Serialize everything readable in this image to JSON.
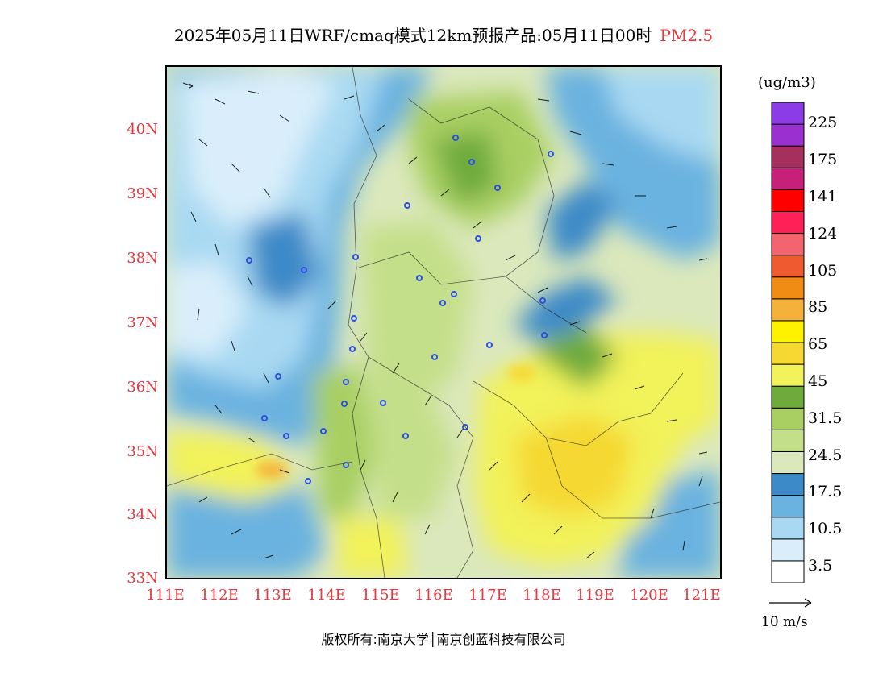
{
  "title": {
    "main": "2025年05月11日WRF/cmaq模式12km预报产品:05月11日00时",
    "variable": "PM2.5"
  },
  "colors": {
    "accent_red": "#e8383d",
    "scale": [
      "#ffffff",
      "#d9eefa",
      "#a9d9f2",
      "#6ab2e0",
      "#3d8ac8",
      "#dbe8bc",
      "#c4df8a",
      "#a9cf62",
      "#6eaa3c",
      "#f2f25a",
      "#f5d832",
      "#fff200",
      "#f5b23a",
      "#f08c14",
      "#ef5a30",
      "#f2646e",
      "#ff2058",
      "#ff0000",
      "#c8207a",
      "#a5305e",
      "#9a30d0",
      "#8c3ce6"
    ]
  },
  "map": {
    "lat_labels": [
      "40N",
      "39N",
      "38N",
      "37N",
      "36N",
      "35N",
      "34N",
      "33N"
    ],
    "lon_labels": [
      "111E",
      "112E",
      "113E",
      "114E",
      "115E",
      "116E",
      "117E",
      "118E",
      "119E",
      "120E",
      "121E"
    ]
  },
  "colorbar": {
    "unit": "(ug/m3)",
    "labels": [
      "225",
      "175",
      "141",
      "124",
      "105",
      "85",
      "65",
      "45",
      "31.5",
      "24.5",
      "17.5",
      "10.5",
      "3.5"
    ]
  },
  "wind_reference": "10 m/s",
  "copyright": "版权所有:南京大学│南京创蓝科技有限公司"
}
